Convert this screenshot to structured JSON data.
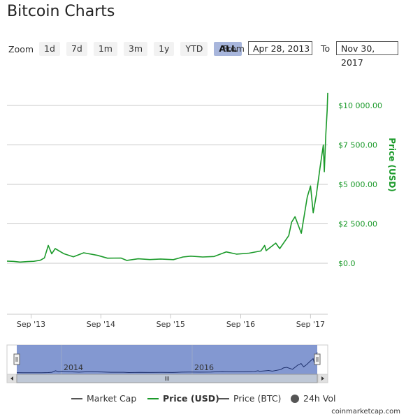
{
  "title": "Bitcoin Charts",
  "zoom": {
    "label": "Zoom",
    "buttons": [
      "1d",
      "7d",
      "1m",
      "3m",
      "1y",
      "YTD",
      "ALL"
    ],
    "active": "ALL"
  },
  "range": {
    "from_label": "From",
    "from_value": "Apr 28, 2013",
    "to_label": "To",
    "to_value": "Nov 30, 2017"
  },
  "chart_data": {
    "type": "line",
    "ylabel": "Price (USD)",
    "y_ticks": [
      "$0.0",
      "$2 500.00",
      "$5 000.00",
      "$7 500.00",
      "$10 000.00"
    ],
    "ylim": [
      0,
      10000
    ],
    "x_ticks": [
      "Sep '13",
      "Sep '14",
      "Sep '15",
      "Sep '16",
      "Sep '17"
    ],
    "xlim": [
      "2013-04-28",
      "2017-11-30"
    ],
    "grid": true,
    "series": [
      {
        "name": "Price (USD)",
        "color": "#1b9a2a",
        "points": [
          [
            "2013-04-28",
            135
          ],
          [
            "2013-06-01",
            120
          ],
          [
            "2013-07-05",
            75
          ],
          [
            "2013-08-15",
            105
          ],
          [
            "2013-09-15",
            125
          ],
          [
            "2013-10-20",
            195
          ],
          [
            "2013-11-10",
            340
          ],
          [
            "2013-11-30",
            1130
          ],
          [
            "2013-12-18",
            600
          ],
          [
            "2014-01-05",
            930
          ],
          [
            "2014-02-20",
            600
          ],
          [
            "2014-04-10",
            410
          ],
          [
            "2014-06-03",
            665
          ],
          [
            "2014-08-15",
            500
          ],
          [
            "2014-10-05",
            325
          ],
          [
            "2014-12-15",
            330
          ],
          [
            "2015-01-14",
            180
          ],
          [
            "2015-03-15",
            285
          ],
          [
            "2015-05-15",
            235
          ],
          [
            "2015-07-10",
            270
          ],
          [
            "2015-09-15",
            230
          ],
          [
            "2015-11-04",
            400
          ],
          [
            "2015-12-15",
            450
          ],
          [
            "2016-02-15",
            400
          ],
          [
            "2016-04-15",
            430
          ],
          [
            "2016-06-17",
            720
          ],
          [
            "2016-08-10",
            580
          ],
          [
            "2016-10-15",
            640
          ],
          [
            "2016-12-15",
            780
          ],
          [
            "2017-01-04",
            1130
          ],
          [
            "2017-01-12",
            800
          ],
          [
            "2017-03-03",
            1280
          ],
          [
            "2017-03-24",
            930
          ],
          [
            "2017-05-10",
            1750
          ],
          [
            "2017-05-25",
            2600
          ],
          [
            "2017-06-12",
            2950
          ],
          [
            "2017-07-15",
            1900
          ],
          [
            "2017-08-15",
            4200
          ],
          [
            "2017-09-01",
            4900
          ],
          [
            "2017-09-15",
            3200
          ],
          [
            "2017-10-01",
            4300
          ],
          [
            "2017-10-20",
            6000
          ],
          [
            "2017-11-07",
            7500
          ],
          [
            "2017-11-12",
            5800
          ],
          [
            "2017-11-20",
            8200
          ],
          [
            "2017-11-27",
            9700
          ],
          [
            "2017-11-30",
            10800
          ]
        ]
      }
    ],
    "navigator": {
      "labels": [
        "2014",
        "2016"
      ]
    }
  },
  "legend": [
    "Market Cap",
    "Price (USD)",
    "Price (BTC)",
    "24h Vol"
  ],
  "scrollbar_grip": "III",
  "credit": "coinmarketcap.com"
}
